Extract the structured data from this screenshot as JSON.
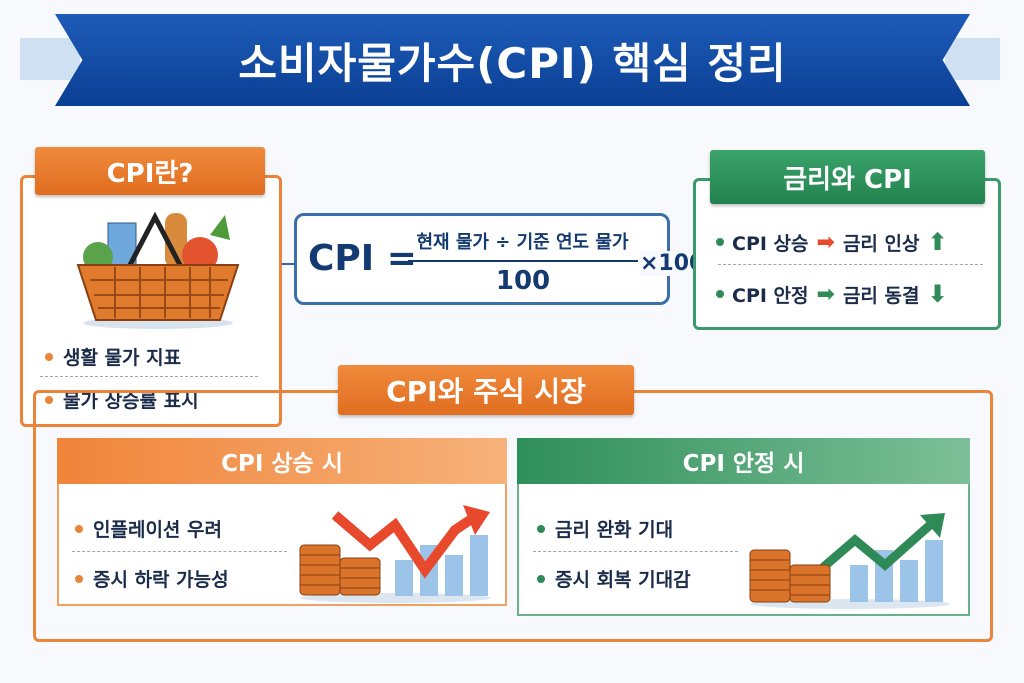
{
  "title": "소비자물가수(CPI) 핵심 정리",
  "cpi_box": {
    "header": "CPI란?",
    "bullets": [
      "생활 물가 지표",
      "물가 상승률 표시"
    ]
  },
  "formula": {
    "lhs": "CPI =",
    "numerator": "현재 물가 ÷ 기준 연도 물가",
    "denominator": "100",
    "multiplier": "×100"
  },
  "rate_box": {
    "header": "금리와 CPI",
    "rows": [
      {
        "cause": "CPI 상승",
        "effect": "금리 인상",
        "direction": "up-arrow-icon"
      },
      {
        "cause": "CPI 안정",
        "effect": "금리 동결",
        "direction": "down-arrow-icon"
      }
    ]
  },
  "market": {
    "header": "CPI와 주식 시장",
    "rise": {
      "header": "CPI 상승 시",
      "bullets": [
        "인플레이션 우려",
        "증시 하락 가능성"
      ]
    },
    "stable": {
      "header": "CPI 안정 시",
      "bullets": [
        "금리 완화 기대",
        "증시 회복 기대감"
      ]
    }
  },
  "colors": {
    "navy": "#0b3f94",
    "orange": "#e9843a",
    "green": "#2e8b57",
    "red_arrow": "#e8492c"
  }
}
